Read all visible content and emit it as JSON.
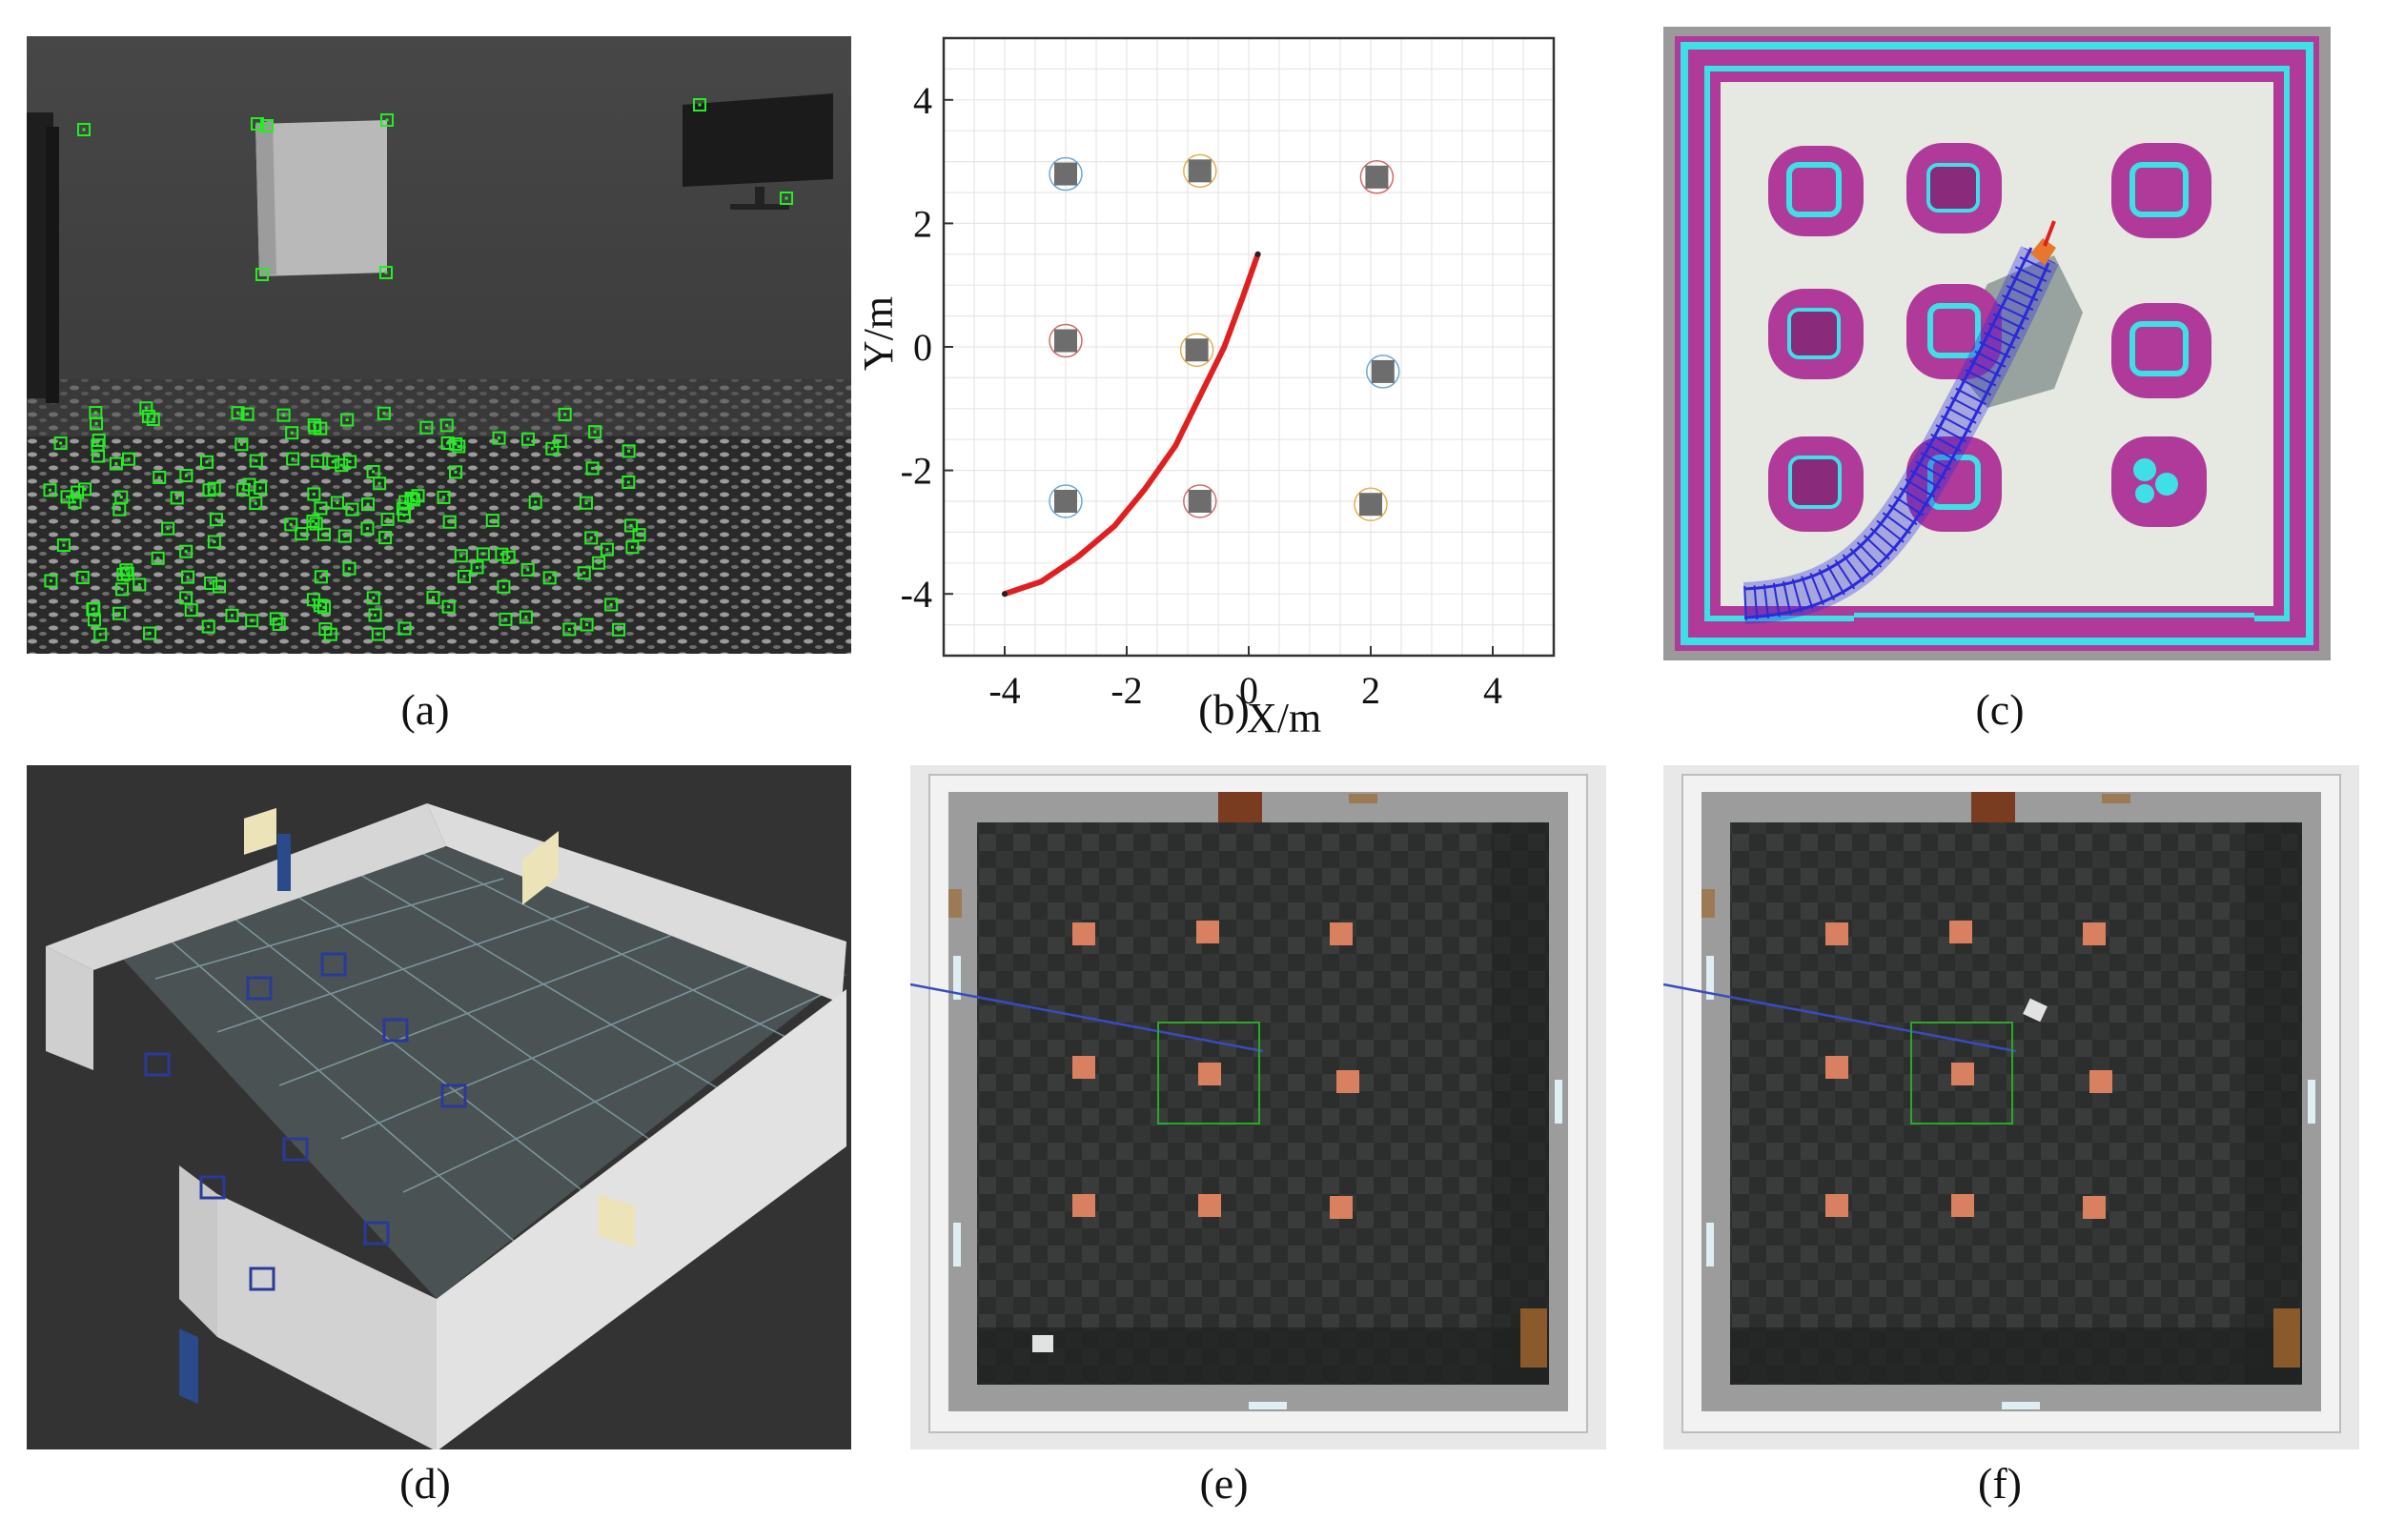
{
  "captions": {
    "a": "(a)",
    "b": "(b)",
    "c": "(c)",
    "d": "(d)",
    "e": "(e)",
    "f": "(f)"
  },
  "chart_data": {
    "type": "line",
    "title": "",
    "xlabel": "X/m",
    "ylabel": "Y/m",
    "xlim": [
      -5,
      5
    ],
    "ylim": [
      -5,
      5
    ],
    "xticks": [
      -4,
      -2,
      0,
      2,
      4
    ],
    "yticks": [
      -4,
      -2,
      0,
      2,
      4
    ],
    "xtick_labels": [
      "-4",
      "-2",
      "0",
      "2",
      "4"
    ],
    "ytick_labels": [
      "-4",
      "-2",
      "0",
      "2",
      "4"
    ],
    "grid": true,
    "series": [
      {
        "x": [
          -4.0,
          -3.4,
          -2.8,
          -2.2,
          -1.7,
          -1.2,
          -0.8,
          -0.4,
          -0.1,
          0.15
        ],
        "y": [
          -4.0,
          -3.8,
          -3.4,
          -2.9,
          -2.3,
          -1.6,
          -0.8,
          0.0,
          0.8,
          1.5
        ],
        "color": "#e02020"
      }
    ],
    "obstacles": [
      {
        "x": -3.0,
        "y": 2.8,
        "ring": "#6aa9d8"
      },
      {
        "x": -0.8,
        "y": 2.85,
        "ring": "#e0b050"
      },
      {
        "x": 2.1,
        "y": 2.75,
        "ring": "#d06a6a"
      },
      {
        "x": -3.0,
        "y": 0.1,
        "ring": "#d06a6a"
      },
      {
        "x": -0.85,
        "y": -0.05,
        "ring": "#e0b050"
      },
      {
        "x": 2.2,
        "y": -0.4,
        "ring": "#6aa9d8"
      },
      {
        "x": -3.0,
        "y": -2.5,
        "ring": "#6aa9d8"
      },
      {
        "x": -0.8,
        "y": -2.5,
        "ring": "#d06a6a"
      },
      {
        "x": 2.0,
        "y": -2.55,
        "ring": "#e0b050"
      }
    ]
  },
  "colors": {
    "feature_green": "#22ee22",
    "costmap_magenta": "#b03a9a",
    "costmap_cyan": "#3ee0e8",
    "path_blue": "#2a2ad8",
    "box_orange": "#d98060"
  }
}
